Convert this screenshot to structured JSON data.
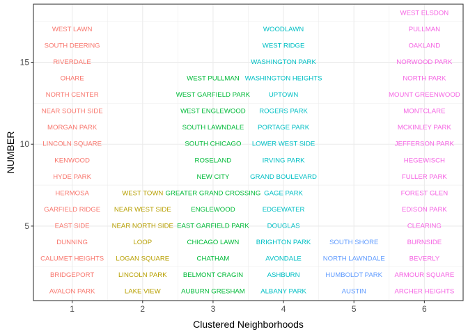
{
  "chart_data": {
    "type": "scatter",
    "title": "",
    "xlabel": "Clustered Neighborhoods",
    "ylabel": "NUMBER",
    "xlim": [
      0.45,
      6.55
    ],
    "ylim": [
      0.45,
      18.55
    ],
    "x_ticks": [
      1,
      2,
      3,
      4,
      5,
      6
    ],
    "y_ticks": [
      5,
      10,
      15
    ],
    "grid": true,
    "legend": "none",
    "colors": {
      "1": "#F8766D",
      "2": "#B79F00",
      "3": "#00BA38",
      "4": "#00BFC4",
      "5": "#619CFF",
      "6": "#F564E3"
    },
    "points": [
      {
        "x": 1,
        "y": 1,
        "label": "AVALON PARK"
      },
      {
        "x": 1,
        "y": 2,
        "label": "BRIDGEPORT"
      },
      {
        "x": 1,
        "y": 3,
        "label": "CALUMET HEIGHTS"
      },
      {
        "x": 1,
        "y": 4,
        "label": "DUNNING"
      },
      {
        "x": 1,
        "y": 5,
        "label": "EAST SIDE"
      },
      {
        "x": 1,
        "y": 6,
        "label": "GARFIELD RIDGE"
      },
      {
        "x": 1,
        "y": 7,
        "label": "HERMOSA"
      },
      {
        "x": 1,
        "y": 8,
        "label": "HYDE PARK"
      },
      {
        "x": 1,
        "y": 9,
        "label": "KENWOOD"
      },
      {
        "x": 1,
        "y": 10,
        "label": "LINCOLN SQUARE"
      },
      {
        "x": 1,
        "y": 11,
        "label": "MORGAN PARK"
      },
      {
        "x": 1,
        "y": 12,
        "label": "NEAR SOUTH SIDE"
      },
      {
        "x": 1,
        "y": 13,
        "label": "NORTH CENTER"
      },
      {
        "x": 1,
        "y": 14,
        "label": "OHARE"
      },
      {
        "x": 1,
        "y": 15,
        "label": "RIVERDALE"
      },
      {
        "x": 1,
        "y": 16,
        "label": "SOUTH DEERING"
      },
      {
        "x": 1,
        "y": 17,
        "label": "WEST LAWN"
      },
      {
        "x": 2,
        "y": 1,
        "label": "LAKE VIEW"
      },
      {
        "x": 2,
        "y": 2,
        "label": "LINCOLN PARK"
      },
      {
        "x": 2,
        "y": 3,
        "label": "LOGAN SQUARE"
      },
      {
        "x": 2,
        "y": 4,
        "label": "LOOP"
      },
      {
        "x": 2,
        "y": 5,
        "label": "NEAR NORTH SIDE"
      },
      {
        "x": 2,
        "y": 6,
        "label": "NEAR WEST SIDE"
      },
      {
        "x": 2,
        "y": 7,
        "label": "WEST TOWN"
      },
      {
        "x": 3,
        "y": 1,
        "label": "AUBURN GRESHAM"
      },
      {
        "x": 3,
        "y": 2,
        "label": "BELMONT CRAGIN"
      },
      {
        "x": 3,
        "y": 3,
        "label": "CHATHAM"
      },
      {
        "x": 3,
        "y": 4,
        "label": "CHICAGO LAWN"
      },
      {
        "x": 3,
        "y": 5,
        "label": "EAST GARFIELD PARK"
      },
      {
        "x": 3,
        "y": 6,
        "label": "ENGLEWOOD"
      },
      {
        "x": 3,
        "y": 7,
        "label": "GREATER GRAND CROSSING"
      },
      {
        "x": 3,
        "y": 8,
        "label": "NEW CITY"
      },
      {
        "x": 3,
        "y": 9,
        "label": "ROSELAND"
      },
      {
        "x": 3,
        "y": 10,
        "label": "SOUTH CHICAGO"
      },
      {
        "x": 3,
        "y": 11,
        "label": "SOUTH LAWNDALE"
      },
      {
        "x": 3,
        "y": 12,
        "label": "WEST ENGLEWOOD"
      },
      {
        "x": 3,
        "y": 13,
        "label": "WEST GARFIELD PARK"
      },
      {
        "x": 3,
        "y": 14,
        "label": "WEST PULLMAN"
      },
      {
        "x": 4,
        "y": 1,
        "label": "ALBANY PARK"
      },
      {
        "x": 4,
        "y": 2,
        "label": "ASHBURN"
      },
      {
        "x": 4,
        "y": 3,
        "label": "AVONDALE"
      },
      {
        "x": 4,
        "y": 4,
        "label": "BRIGHTON PARK"
      },
      {
        "x": 4,
        "y": 5,
        "label": "DOUGLAS"
      },
      {
        "x": 4,
        "y": 6,
        "label": "EDGEWATER"
      },
      {
        "x": 4,
        "y": 7,
        "label": "GAGE PARK"
      },
      {
        "x": 4,
        "y": 8,
        "label": "GRAND BOULEVARD"
      },
      {
        "x": 4,
        "y": 9,
        "label": "IRVING PARK"
      },
      {
        "x": 4,
        "y": 10,
        "label": "LOWER WEST SIDE"
      },
      {
        "x": 4,
        "y": 11,
        "label": "PORTAGE PARK"
      },
      {
        "x": 4,
        "y": 12,
        "label": "ROGERS PARK"
      },
      {
        "x": 4,
        "y": 13,
        "label": "UPTOWN"
      },
      {
        "x": 4,
        "y": 14,
        "label": "WASHINGTON HEIGHTS"
      },
      {
        "x": 4,
        "y": 15,
        "label": "WASHINGTON PARK"
      },
      {
        "x": 4,
        "y": 16,
        "label": "WEST RIDGE"
      },
      {
        "x": 4,
        "y": 17,
        "label": "WOODLAWN"
      },
      {
        "x": 5,
        "y": 1,
        "label": "AUSTIN"
      },
      {
        "x": 5,
        "y": 2,
        "label": "HUMBOLDT PARK"
      },
      {
        "x": 5,
        "y": 3,
        "label": "NORTH LAWNDALE"
      },
      {
        "x": 5,
        "y": 4,
        "label": "SOUTH SHORE"
      },
      {
        "x": 6,
        "y": 1,
        "label": "ARCHER HEIGHTS"
      },
      {
        "x": 6,
        "y": 2,
        "label": "ARMOUR SQUARE"
      },
      {
        "x": 6,
        "y": 3,
        "label": "BEVERLY"
      },
      {
        "x": 6,
        "y": 4,
        "label": "BURNSIDE"
      },
      {
        "x": 6,
        "y": 5,
        "label": "CLEARING"
      },
      {
        "x": 6,
        "y": 6,
        "label": "EDISON PARK"
      },
      {
        "x": 6,
        "y": 7,
        "label": "FOREST GLEN"
      },
      {
        "x": 6,
        "y": 8,
        "label": "FULLER PARK"
      },
      {
        "x": 6,
        "y": 9,
        "label": "HEGEWISCH"
      },
      {
        "x": 6,
        "y": 10,
        "label": "JEFFERSON PARK"
      },
      {
        "x": 6,
        "y": 11,
        "label": "MCKINLEY PARK"
      },
      {
        "x": 6,
        "y": 12,
        "label": "MONTCLARE"
      },
      {
        "x": 6,
        "y": 13,
        "label": "MOUNT GREENWOOD"
      },
      {
        "x": 6,
        "y": 14,
        "label": "NORTH PARK"
      },
      {
        "x": 6,
        "y": 15,
        "label": "NORWOOD PARK"
      },
      {
        "x": 6,
        "y": 16,
        "label": "OAKLAND"
      },
      {
        "x": 6,
        "y": 17,
        "label": "PULLMAN"
      },
      {
        "x": 6,
        "y": 18,
        "label": "WEST ELSDON"
      }
    ]
  }
}
